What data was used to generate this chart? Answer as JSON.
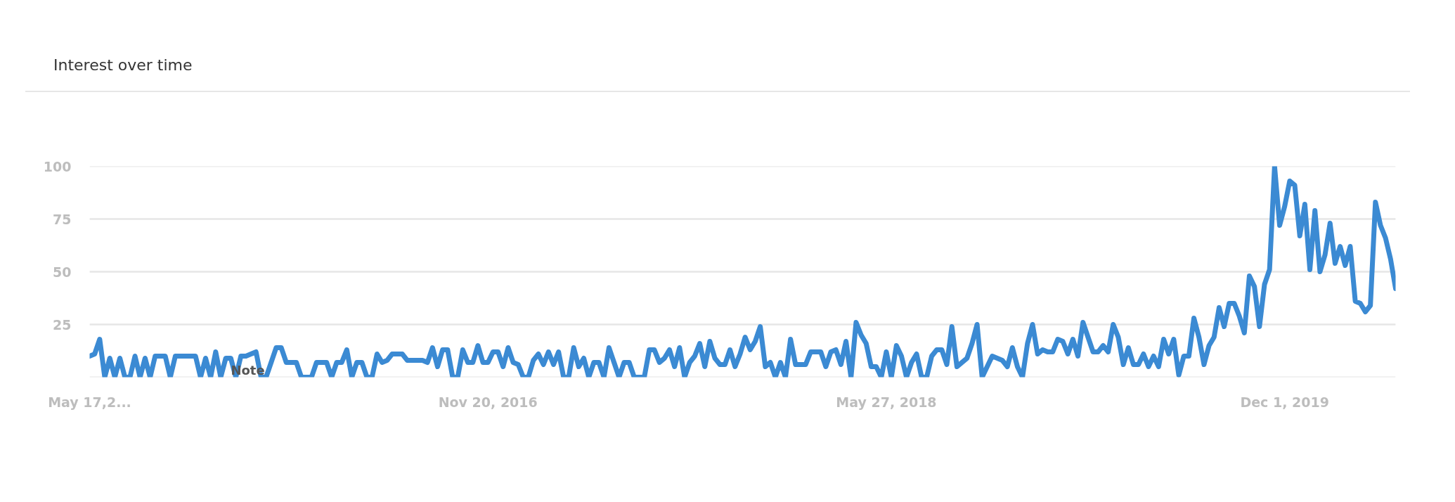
{
  "chart_data": {
    "type": "line",
    "title": "Interest over time",
    "x": [
      "2015-05-17",
      "2015-05-24",
      "2015-05-31",
      "2015-06-07",
      "2015-06-14",
      "2015-06-21",
      "2015-06-28",
      "2015-07-05",
      "2015-07-12",
      "2015-07-19",
      "2015-07-26",
      "2015-08-02",
      "2015-08-09",
      "2015-08-16",
      "2015-08-23",
      "2015-08-30",
      "2015-09-06",
      "2015-09-13",
      "2015-09-20",
      "2015-09-27",
      "2015-10-04",
      "2015-10-11",
      "2015-10-18",
      "2015-10-25",
      "2015-11-01",
      "2015-11-08",
      "2015-11-15",
      "2015-11-22",
      "2015-11-29",
      "2015-12-06",
      "2015-12-13",
      "2015-12-20",
      "2015-12-27",
      "2016-01-03",
      "2016-01-10",
      "2016-01-17",
      "2016-01-24",
      "2016-01-31",
      "2016-02-07",
      "2016-02-14",
      "2016-02-21",
      "2016-02-28",
      "2016-03-06",
      "2016-03-13",
      "2016-03-20",
      "2016-03-27",
      "2016-04-03",
      "2016-04-10",
      "2016-04-17",
      "2016-04-24",
      "2016-05-01",
      "2016-05-08",
      "2016-05-15",
      "2016-05-22",
      "2016-05-29",
      "2016-06-05",
      "2016-06-12",
      "2016-06-19",
      "2016-06-26",
      "2016-07-03",
      "2016-07-10",
      "2016-07-17",
      "2016-07-24",
      "2016-07-31",
      "2016-08-07",
      "2016-08-14",
      "2016-08-21",
      "2016-08-28",
      "2016-09-04",
      "2016-09-11",
      "2016-09-18",
      "2016-09-25",
      "2016-10-02",
      "2016-10-09",
      "2016-10-16",
      "2016-10-23",
      "2016-10-30",
      "2016-11-06",
      "2016-11-13",
      "2016-11-20",
      "2016-11-27",
      "2016-12-04",
      "2016-12-11",
      "2016-12-18",
      "2016-12-25",
      "2017-01-01",
      "2017-01-08",
      "2017-01-15",
      "2017-01-22",
      "2017-01-29",
      "2017-02-05",
      "2017-02-12",
      "2017-02-19",
      "2017-02-26",
      "2017-03-05",
      "2017-03-12",
      "2017-03-19",
      "2017-03-26",
      "2017-04-02",
      "2017-04-09",
      "2017-04-16",
      "2017-04-23",
      "2017-04-30",
      "2017-05-07",
      "2017-05-14",
      "2017-05-21",
      "2017-05-28",
      "2017-06-04",
      "2017-06-11",
      "2017-06-18",
      "2017-06-25",
      "2017-07-02",
      "2017-07-09",
      "2017-07-16",
      "2017-07-23",
      "2017-07-30",
      "2017-08-06",
      "2017-08-13",
      "2017-08-20",
      "2017-08-27",
      "2017-09-03",
      "2017-09-10",
      "2017-09-17",
      "2017-09-24",
      "2017-10-01",
      "2017-10-08",
      "2017-10-15",
      "2017-10-22",
      "2017-10-29",
      "2017-11-05",
      "2017-11-12",
      "2017-11-19",
      "2017-11-26",
      "2017-12-03",
      "2017-12-10",
      "2017-12-17",
      "2017-12-24",
      "2017-12-31",
      "2018-01-07",
      "2018-01-14",
      "2018-01-21",
      "2018-01-28",
      "2018-02-04",
      "2018-02-11",
      "2018-02-18",
      "2018-02-25",
      "2018-03-04",
      "2018-03-11",
      "2018-03-18",
      "2018-03-25",
      "2018-04-01",
      "2018-04-08",
      "2018-04-15",
      "2018-04-22",
      "2018-04-29",
      "2018-05-06",
      "2018-05-13",
      "2018-05-20",
      "2018-05-27",
      "2018-06-03",
      "2018-06-10",
      "2018-06-17",
      "2018-06-24",
      "2018-07-01",
      "2018-07-08",
      "2018-07-15",
      "2018-07-22",
      "2018-07-29",
      "2018-08-05",
      "2018-08-12",
      "2018-08-19",
      "2018-08-26",
      "2018-09-02",
      "2018-09-09",
      "2018-09-16",
      "2018-09-23",
      "2018-09-30",
      "2018-10-07",
      "2018-10-14",
      "2018-10-21",
      "2018-10-28",
      "2018-11-04",
      "2018-11-11",
      "2018-11-18",
      "2018-11-25",
      "2018-12-02",
      "2018-12-09",
      "2018-12-16",
      "2018-12-23",
      "2018-12-30",
      "2019-01-06",
      "2019-01-13",
      "2019-01-20",
      "2019-01-27",
      "2019-02-03",
      "2019-02-10",
      "2019-02-17",
      "2019-02-24",
      "2019-03-03",
      "2019-03-10",
      "2019-03-17",
      "2019-03-24",
      "2019-03-31",
      "2019-04-07",
      "2019-04-14",
      "2019-04-21",
      "2019-04-28",
      "2019-05-05",
      "2019-05-12",
      "2019-05-19",
      "2019-05-26",
      "2019-06-02",
      "2019-06-09",
      "2019-06-16",
      "2019-06-23",
      "2019-06-30",
      "2019-07-07",
      "2019-07-14",
      "2019-07-21",
      "2019-07-28",
      "2019-08-04",
      "2019-08-11",
      "2019-08-18",
      "2019-08-25",
      "2019-09-01",
      "2019-09-08",
      "2019-09-15",
      "2019-09-22",
      "2019-09-29",
      "2019-10-06",
      "2019-10-13",
      "2019-10-20",
      "2019-10-27",
      "2019-11-03",
      "2019-11-10",
      "2019-11-17",
      "2019-11-24",
      "2019-12-01",
      "2019-12-08",
      "2019-12-15",
      "2019-12-22",
      "2019-12-29",
      "2020-01-05",
      "2020-01-12",
      "2020-01-19",
      "2020-01-26",
      "2020-02-02",
      "2020-02-09",
      "2020-02-16",
      "2020-02-23",
      "2020-03-01",
      "2020-03-08",
      "2020-03-15",
      "2020-03-22",
      "2020-03-29",
      "2020-04-05",
      "2020-04-12",
      "2020-04-19",
      "2020-04-26",
      "2020-05-03"
    ],
    "series": [
      {
        "color": "#3b8ad3",
        "values": [
          10,
          11,
          18,
          0,
          9,
          0,
          9,
          0,
          0,
          10,
          0,
          9,
          0,
          10,
          10,
          10,
          0,
          10,
          10,
          10,
          10,
          10,
          0,
          9,
          0,
          12,
          0,
          9,
          9,
          0,
          10,
          10,
          11,
          12,
          0,
          0,
          7,
          14,
          14,
          7,
          7,
          7,
          0,
          0,
          0,
          7,
          7,
          7,
          0,
          7,
          7,
          13,
          0,
          7,
          7,
          0,
          0,
          11,
          7,
          8,
          11,
          11,
          11,
          8,
          8,
          8,
          8,
          7,
          14,
          5,
          13,
          13,
          0,
          0,
          13,
          7,
          7,
          15,
          7,
          7,
          12,
          12,
          5,
          14,
          7,
          6,
          0,
          0,
          8,
          11,
          6,
          12,
          6,
          12,
          0,
          0,
          14,
          5,
          9,
          0,
          7,
          7,
          0,
          14,
          7,
          0,
          7,
          7,
          0,
          0,
          0,
          13,
          13,
          7,
          9,
          13,
          5,
          14,
          0,
          7,
          10,
          16,
          5,
          17,
          9,
          6,
          6,
          13,
          5,
          11,
          19,
          13,
          17,
          24,
          5,
          7,
          0,
          7,
          0,
          18,
          6,
          6,
          6,
          12,
          12,
          12,
          5,
          12,
          13,
          6,
          17,
          0,
          26,
          20,
          16,
          5,
          5,
          0,
          12,
          0,
          15,
          10,
          0,
          7,
          11,
          0,
          0,
          10,
          13,
          13,
          6,
          24,
          5,
          7,
          9,
          16,
          25,
          0,
          5,
          10,
          9,
          8,
          5,
          14,
          5,
          0,
          16,
          25,
          11,
          13,
          12,
          12,
          18,
          17,
          11,
          18,
          10,
          26,
          19,
          12,
          12,
          15,
          12,
          25,
          19,
          6,
          14,
          6,
          6,
          11,
          5,
          10,
          5,
          18,
          11,
          18,
          1,
          10,
          10,
          28,
          19,
          6,
          15,
          19,
          33,
          24,
          35,
          35,
          29,
          21,
          48,
          43,
          24,
          44,
          51,
          100,
          72,
          81,
          93,
          91,
          67,
          82,
          51,
          79,
          50,
          58,
          73,
          54,
          62,
          53,
          62,
          36,
          35,
          31,
          34,
          83,
          72,
          66,
          56,
          42
        ]
      }
    ],
    "xlim": [
      "2015-05-17",
      "2020-05-03"
    ],
    "xticks": [
      {
        "value": "2015-05-17",
        "label": "May 17,2..."
      },
      {
        "value": "2016-11-20",
        "label": "Nov 20, 2016"
      },
      {
        "value": "2018-05-27",
        "label": "May 27, 2018"
      },
      {
        "value": "2019-12-01",
        "label": "Dec 1, 2019"
      }
    ],
    "ylim": [
      0,
      100
    ],
    "yticks": [
      {
        "value": 0,
        "label": null
      },
      25,
      50,
      75,
      100
    ],
    "grid": "y",
    "annotations": [
      "Note"
    ]
  }
}
